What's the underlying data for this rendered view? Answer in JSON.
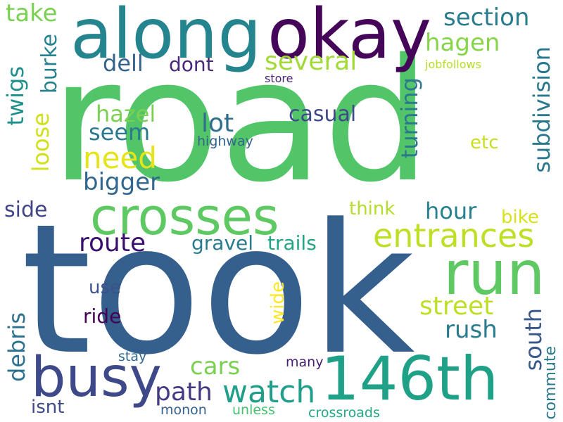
{
  "words": {
    "road": {
      "text": "road",
      "color": "#52c569"
    },
    "took": {
      "text": "took",
      "color": "#355f8d"
    },
    "along": {
      "text": "along",
      "color": "#25858e"
    },
    "okay": {
      "text": "okay",
      "color": "#450559"
    },
    "crosses": {
      "text": "crosses",
      "color": "#5ec962"
    },
    "run": {
      "text": "run",
      "color": "#5ec962"
    },
    "busy": {
      "text": "busy",
      "color": "#3e4989"
    },
    "n146th": {
      "text": "146th",
      "color": "#1fa188"
    },
    "entrances": {
      "text": "entrances",
      "color": "#bddf26"
    },
    "watch": {
      "text": "watch",
      "color": "#1f9e89"
    },
    "need": {
      "text": "need",
      "color": "#e5e419"
    },
    "route": {
      "text": "route",
      "color": "#3b0f70"
    },
    "path": {
      "text": "path",
      "color": "#443983"
    },
    "street": {
      "text": "street",
      "color": "#bddf26"
    },
    "section": {
      "text": "section",
      "color": "#287c8e"
    },
    "hagen": {
      "text": "hagen",
      "color": "#86d549"
    },
    "several": {
      "text": "several",
      "color": "#a2da37"
    },
    "bigger": {
      "text": "bigger",
      "color": "#31668e"
    },
    "dell": {
      "text": "dell",
      "color": "#33638d"
    },
    "hazel": {
      "text": "hazel",
      "color": "#7ad151"
    },
    "lot": {
      "text": "lot",
      "color": "#2e6e8e"
    },
    "seem": {
      "text": "seem",
      "color": "#2a788e"
    },
    "cars": {
      "text": "cars",
      "color": "#7ad151"
    },
    "hour": {
      "text": "hour",
      "color": "#26818e"
    },
    "rush": {
      "text": "rush",
      "color": "#287c8e"
    },
    "take": {
      "text": "take",
      "color": "#7ad151"
    },
    "casual": {
      "text": "casual",
      "color": "#3e4989"
    },
    "gravel": {
      "text": "gravel",
      "color": "#287c8e"
    },
    "trails": {
      "text": "trails",
      "color": "#21a585"
    },
    "side": {
      "text": "side",
      "color": "#414487"
    },
    "dont": {
      "text": "dont",
      "color": "#482878"
    },
    "think": {
      "text": "think",
      "color": "#b5de2b"
    },
    "bike": {
      "text": "bike",
      "color": "#d8e219"
    },
    "etc": {
      "text": "etc",
      "color": "#c8e020"
    },
    "use": {
      "text": "use",
      "color": "#3b528b"
    },
    "ride": {
      "text": "ride",
      "color": "#440154"
    },
    "isnt": {
      "text": "isnt",
      "color": "#3e4a89"
    },
    "highway": {
      "text": "highway",
      "color": "#33638d"
    },
    "stay": {
      "text": "stay",
      "color": "#31688e"
    },
    "many": {
      "text": "many",
      "color": "#481f70"
    },
    "monon": {
      "text": "monon",
      "color": "#35608d"
    },
    "unless": {
      "text": "unless",
      "color": "#44bf70"
    },
    "crossroads": {
      "text": "crossroads",
      "color": "#22a884"
    },
    "jobfollows": {
      "text": "jobfollows",
      "color": "#b5de2b"
    },
    "store": {
      "text": "store",
      "color": "#482475"
    },
    "subdivision": {
      "text": "subdivision",
      "color": "#2a788e"
    },
    "turning": {
      "text": "turning",
      "color": "#2a788e"
    },
    "twigs": {
      "text": "twigs",
      "color": "#21908d"
    },
    "burke": {
      "text": "burke",
      "color": "#26828e"
    },
    "loose": {
      "text": "loose",
      "color": "#d0e11c"
    },
    "debris": {
      "text": "debris",
      "color": "#2c728e"
    },
    "south": {
      "text": "south",
      "color": "#38588c"
    },
    "commute": {
      "text": "commute",
      "color": "#2a788e"
    },
    "wide": {
      "text": "wide",
      "color": "#fde725"
    }
  }
}
